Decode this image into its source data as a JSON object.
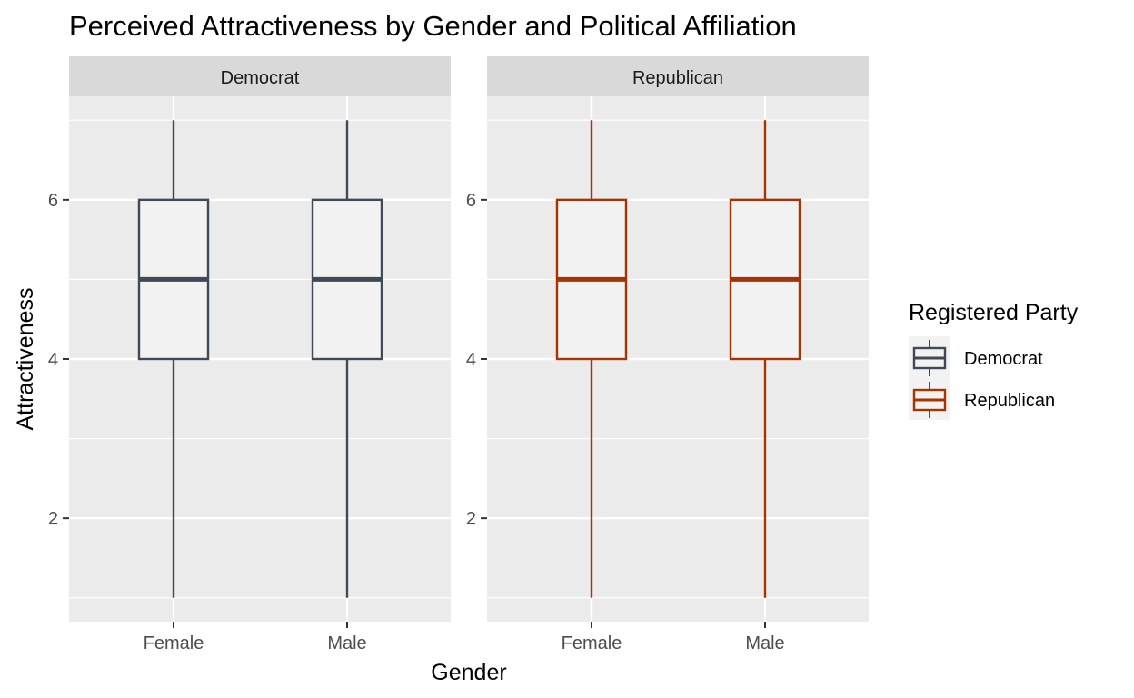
{
  "chart_data": {
    "type": "boxplot",
    "title": "Perceived Attractiveness by Gender and Political Affiliation",
    "xlabel": "Gender",
    "ylabel": "Attractiveness",
    "categories": [
      "Female",
      "Male"
    ],
    "ylim": [
      0.7,
      7.3
    ],
    "yticks": [
      2,
      4,
      6
    ],
    "grid": true,
    "legend": {
      "title": "Registered Party",
      "position": "right",
      "entries": [
        "Democrat",
        "Republican"
      ]
    },
    "facets": [
      {
        "label": "Democrat",
        "color": "#3f4a56",
        "boxes": [
          {
            "category": "Female",
            "min": 1,
            "q1": 4,
            "median": 5,
            "q3": 6,
            "max": 7
          },
          {
            "category": "Male",
            "min": 1,
            "q1": 4,
            "median": 5,
            "q3": 6,
            "max": 7
          }
        ]
      },
      {
        "label": "Republican",
        "color": "#a83200",
        "boxes": [
          {
            "category": "Female",
            "min": 1,
            "q1": 4,
            "median": 5,
            "q3": 6,
            "max": 7
          },
          {
            "category": "Male",
            "min": 1,
            "q1": 4,
            "median": 5,
            "q3": 6,
            "max": 7
          }
        ]
      }
    ]
  }
}
